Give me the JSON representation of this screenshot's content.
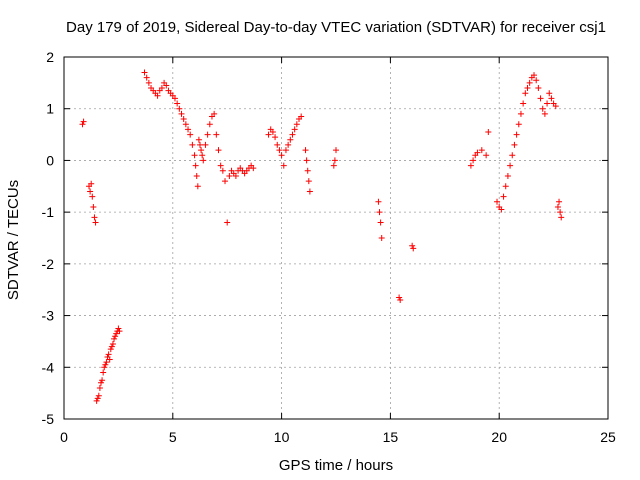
{
  "chart_data": {
    "type": "scatter",
    "title": "Day 179 of 2019, Sidereal Day-to-day VTEC variation (SDTVAR) for receiver csj1",
    "xlabel": "GPS time / hours",
    "ylabel": "SDTVAR / TECUs",
    "xlim": [
      0,
      25
    ],
    "ylim": [
      -5,
      2
    ],
    "xticks": [
      "0",
      "5",
      "10",
      "15",
      "20",
      "25"
    ],
    "yticks": [
      "2",
      "1",
      "0",
      "-1",
      "-2",
      "-3",
      "-4",
      "-5"
    ],
    "grid": true,
    "marker": "+",
    "color": "#ff0000",
    "series": [
      {
        "name": "SDTVAR",
        "x": [
          0.85,
          0.9,
          1.15,
          1.2,
          1.25,
          1.3,
          1.35,
          1.4,
          1.45,
          1.5,
          1.55,
          1.6,
          1.65,
          1.7,
          1.75,
          1.8,
          1.85,
          1.9,
          1.95,
          2.0,
          2.05,
          2.1,
          2.15,
          2.2,
          2.25,
          2.3,
          2.35,
          2.4,
          2.45,
          2.5,
          2.55,
          3.7,
          3.8,
          3.9,
          4.0,
          4.1,
          4.2,
          4.3,
          4.4,
          4.5,
          4.6,
          4.7,
          4.8,
          4.9,
          5.0,
          5.1,
          5.2,
          5.3,
          5.4,
          5.5,
          5.6,
          5.7,
          5.8,
          5.9,
          6.0,
          6.05,
          6.1,
          6.15,
          6.2,
          6.25,
          6.3,
          6.35,
          6.4,
          6.5,
          6.6,
          6.7,
          6.8,
          6.9,
          7.0,
          7.1,
          7.2,
          7.3,
          7.4,
          7.5,
          7.6,
          7.7,
          7.8,
          7.9,
          8.0,
          8.1,
          8.2,
          8.3,
          8.4,
          8.5,
          8.6,
          8.7,
          9.4,
          9.5,
          9.6,
          9.7,
          9.8,
          9.9,
          10.0,
          10.1,
          10.2,
          10.3,
          10.4,
          10.5,
          10.6,
          10.7,
          10.8,
          10.9,
          11.1,
          11.15,
          11.2,
          11.25,
          11.3,
          12.4,
          12.45,
          12.5,
          14.45,
          14.5,
          14.55,
          14.6,
          15.4,
          15.45,
          16.0,
          16.05,
          18.7,
          18.8,
          18.9,
          19.0,
          19.2,
          19.4,
          19.5,
          19.9,
          20.0,
          20.1,
          20.2,
          20.3,
          20.4,
          20.5,
          20.6,
          20.7,
          20.8,
          20.9,
          21.0,
          21.1,
          21.2,
          21.3,
          21.4,
          21.5,
          21.6,
          21.7,
          21.8,
          21.9,
          22.0,
          22.1,
          22.2,
          22.3,
          22.4,
          22.5,
          22.6,
          22.7,
          22.75,
          22.8,
          22.85
        ],
        "y": [
          0.7,
          0.75,
          -0.5,
          -0.6,
          -0.45,
          -0.7,
          -0.9,
          -1.1,
          -1.2,
          -4.65,
          -4.6,
          -4.55,
          -4.4,
          -4.3,
          -4.25,
          -4.1,
          -4.0,
          -3.95,
          -3.9,
          -3.8,
          -3.75,
          -3.85,
          -3.65,
          -3.6,
          -3.55,
          -3.45,
          -3.4,
          -3.35,
          -3.3,
          -3.25,
          -3.3,
          1.7,
          1.6,
          1.5,
          1.4,
          1.35,
          1.3,
          1.25,
          1.35,
          1.4,
          1.5,
          1.45,
          1.35,
          1.3,
          1.25,
          1.2,
          1.1,
          1.0,
          0.9,
          0.8,
          0.7,
          0.6,
          0.5,
          0.3,
          0.1,
          -0.1,
          -0.3,
          -0.5,
          0.4,
          0.3,
          0.2,
          0.1,
          0.0,
          0.3,
          0.5,
          0.7,
          0.85,
          0.9,
          0.5,
          0.2,
          -0.1,
          -0.2,
          -0.4,
          -1.2,
          -0.3,
          -0.2,
          -0.25,
          -0.3,
          -0.2,
          -0.15,
          -0.2,
          -0.25,
          -0.2,
          -0.15,
          -0.1,
          -0.15,
          0.5,
          0.6,
          0.55,
          0.45,
          0.3,
          0.2,
          0.1,
          -0.1,
          0.2,
          0.3,
          0.4,
          0.5,
          0.6,
          0.7,
          0.8,
          0.85,
          0.2,
          0.0,
          -0.2,
          -0.4,
          -0.6,
          -0.1,
          0.0,
          0.2,
          -0.8,
          -1.0,
          -1.2,
          -1.5,
          -2.65,
          -2.7,
          -1.65,
          -1.7,
          -0.1,
          0.0,
          0.1,
          0.15,
          0.2,
          0.1,
          0.55,
          -0.8,
          -0.9,
          -0.95,
          -0.7,
          -0.5,
          -0.3,
          -0.1,
          0.1,
          0.3,
          0.5,
          0.7,
          0.9,
          1.1,
          1.3,
          1.4,
          1.5,
          1.6,
          1.65,
          1.55,
          1.4,
          1.2,
          1.0,
          0.9,
          1.1,
          1.3,
          1.2,
          1.1,
          1.05,
          -0.9,
          -0.8,
          -1.0,
          -1.1
        ]
      }
    ]
  }
}
